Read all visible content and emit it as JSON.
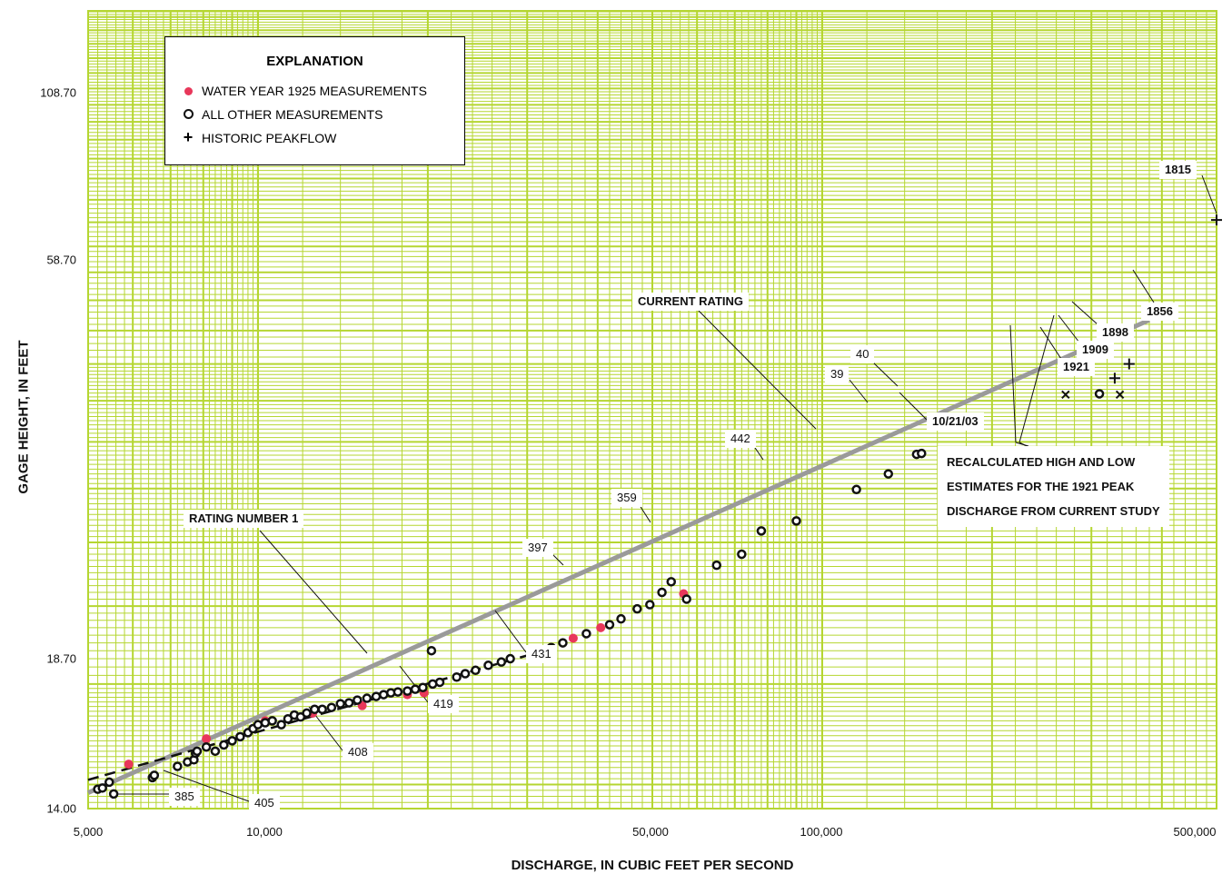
{
  "chart_data": {
    "type": "scatter",
    "xlabel": "DISCHARGE, IN CUBIC FEET PER SECOND",
    "ylabel": "GAGE HEIGHT, IN FEET",
    "x_scale": "log",
    "y_scale": "log",
    "xlim": [
      5000,
      500000
    ],
    "ylim": [
      14.0,
      108.7
    ],
    "x_ticks": [
      "5,000",
      "10,000",
      "50,000",
      "100,000",
      "500,000"
    ],
    "x_tick_values": [
      5000,
      10000,
      50000,
      100000,
      500000
    ],
    "y_ticks": [
      "14.00",
      "18.70",
      "58.70",
      "108.70"
    ],
    "y_tick_values": [
      14.0,
      18.7,
      58.7,
      108.7
    ],
    "grid": true,
    "legend": {
      "title": "EXPLANATION",
      "placement": "top-left",
      "entries": [
        "WATER YEAR 1925 MEASUREMENTS",
        "ALL OTHER MEASUREMENTS",
        "HISTORIC PEAKFLOW"
      ]
    },
    "series": [
      {
        "name": "WATER YEAR 1925 MEASUREMENTS",
        "marker": "filled-circle",
        "color": "#e8375a",
        "points": [
          [
            5900,
            15.9
          ],
          [
            8100,
            17.1
          ],
          [
            10300,
            18.0
          ],
          [
            12500,
            18.4
          ],
          [
            15300,
            18.8
          ],
          [
            18400,
            19.4
          ],
          [
            19700,
            19.5
          ],
          [
            36200,
            22.8
          ],
          [
            40500,
            23.5
          ],
          [
            56800,
            25.9
          ]
        ]
      },
      {
        "name": "ALL OTHER MEASUREMENTS",
        "marker": "open-circle",
        "color": "#111111",
        "points": [
          [
            5200,
            14.8
          ],
          [
            5300,
            14.85
          ],
          [
            5450,
            15.1
          ],
          [
            5550,
            14.6
          ],
          [
            6500,
            15.3
          ],
          [
            6550,
            15.4
          ],
          [
            7200,
            15.8
          ],
          [
            7500,
            16.0
          ],
          [
            7700,
            16.1
          ],
          [
            7750,
            16.4
          ],
          [
            7800,
            16.5
          ],
          [
            8100,
            16.7
          ],
          [
            8400,
            16.5
          ],
          [
            8700,
            16.8
          ],
          [
            9000,
            17.0
          ],
          [
            9300,
            17.2
          ],
          [
            9600,
            17.4
          ],
          [
            9800,
            17.6
          ],
          [
            10000,
            17.8
          ],
          [
            10300,
            17.9
          ],
          [
            10600,
            18.0
          ],
          [
            11000,
            17.8
          ],
          [
            11300,
            18.1
          ],
          [
            11600,
            18.3
          ],
          [
            11900,
            18.2
          ],
          [
            12200,
            18.4
          ],
          [
            12600,
            18.6
          ],
          [
            13000,
            18.6
          ],
          [
            13500,
            18.7
          ],
          [
            14000,
            18.9
          ],
          [
            14500,
            18.95
          ],
          [
            15000,
            19.1
          ],
          [
            15600,
            19.2
          ],
          [
            16200,
            19.3
          ],
          [
            16700,
            19.4
          ],
          [
            17200,
            19.5
          ],
          [
            17700,
            19.55
          ],
          [
            18400,
            19.6
          ],
          [
            19000,
            19.7
          ],
          [
            19600,
            19.8
          ],
          [
            20400,
            20.0
          ],
          [
            21000,
            20.1
          ],
          [
            22500,
            20.4
          ],
          [
            23300,
            20.6
          ],
          [
            24300,
            20.8
          ],
          [
            25600,
            21.1
          ],
          [
            27000,
            21.3
          ],
          [
            28000,
            21.5
          ],
          [
            30500,
            21.8
          ],
          [
            31400,
            21.9
          ],
          [
            33100,
            22.2
          ],
          [
            34700,
            22.5
          ],
          [
            38200,
            23.1
          ],
          [
            42000,
            23.7
          ],
          [
            44000,
            24.1
          ],
          [
            47000,
            24.8
          ],
          [
            49500,
            25.1
          ],
          [
            52000,
            26.0
          ],
          [
            54000,
            26.8
          ],
          [
            57500,
            25.5
          ],
          [
            65000,
            28.1
          ],
          [
            72000,
            29.0
          ],
          [
            78000,
            31.0
          ],
          [
            90000,
            31.9
          ],
          [
            115000,
            34.9
          ],
          [
            131000,
            36.5
          ],
          [
            147000,
            38.6
          ],
          [
            150000,
            38.7
          ],
          [
            310000,
            45.9
          ],
          [
            20300,
            22.0
          ]
        ]
      },
      {
        "name": "HISTORIC PEAKFLOW",
        "marker": "plus",
        "color": "#111111",
        "points": [
          [
            500000,
            75.5
          ],
          [
            410000,
            58.0
          ],
          [
            350000,
            50.0
          ],
          [
            330000,
            48.0
          ]
        ]
      },
      {
        "name": "RECALCULATED 1921 PEAK",
        "marker": "x",
        "color": "#111111",
        "points": [
          [
            270000,
            45.8
          ],
          [
            337000,
            45.8
          ]
        ]
      }
    ],
    "rating_curves": [
      {
        "name": "CURRENT RATING",
        "style": "solid-gray",
        "points": [
          [
            5000,
            14.65
          ],
          [
            380000,
            56.7
          ]
        ]
      },
      {
        "name": "RATING NUMBER 1",
        "style": "dashed-black",
        "points": [
          [
            5000,
            15.2
          ],
          [
            30000,
            21.7
          ]
        ]
      }
    ],
    "annotations": [
      {
        "label": "EXPLANATION"
      },
      {
        "label": "CURRENT RATING"
      },
      {
        "label": "RATING NUMBER 1"
      },
      {
        "label": "385"
      },
      {
        "label": "405"
      },
      {
        "label": "408"
      },
      {
        "label": "419"
      },
      {
        "label": "431"
      },
      {
        "label": "397"
      },
      {
        "label": "359"
      },
      {
        "label": "442"
      },
      {
        "label": "39"
      },
      {
        "label": "40"
      },
      {
        "label": "10/21/03"
      },
      {
        "label": "1815"
      },
      {
        "label": "1856"
      },
      {
        "label": "1898"
      },
      {
        "label": "1909"
      },
      {
        "label": "1921"
      },
      {
        "label": "RECALCULATED HIGH AND LOW ESTIMATES FOR THE 1921 PEAK DISCHARGE FROM CURRENT STUDY"
      }
    ]
  },
  "text": {
    "a385": "385",
    "a405": "405",
    "a408": "408",
    "a419": "419",
    "a431": "431",
    "a397": "397",
    "a359": "359",
    "a442": "442",
    "a39": "39",
    "a40": "40",
    "a1003": "10/21/03",
    "a1815": "1815",
    "a1856": "1856",
    "a1898": "1898",
    "a1909": "1909",
    "a1921": "1921",
    "current": "CURRENT RATING",
    "rating1": "RATING NUMBER 1",
    "recalc1": "RECALCULATED HIGH AND LOW",
    "recalc2": "ESTIMATES FOR THE 1921 PEAK",
    "recalc3": "DISCHARGE FROM CURRENT STUDY"
  },
  "colors": {
    "grid": "#b5d631",
    "accent": "#e8375a",
    "rating": "#9a9a9a"
  }
}
